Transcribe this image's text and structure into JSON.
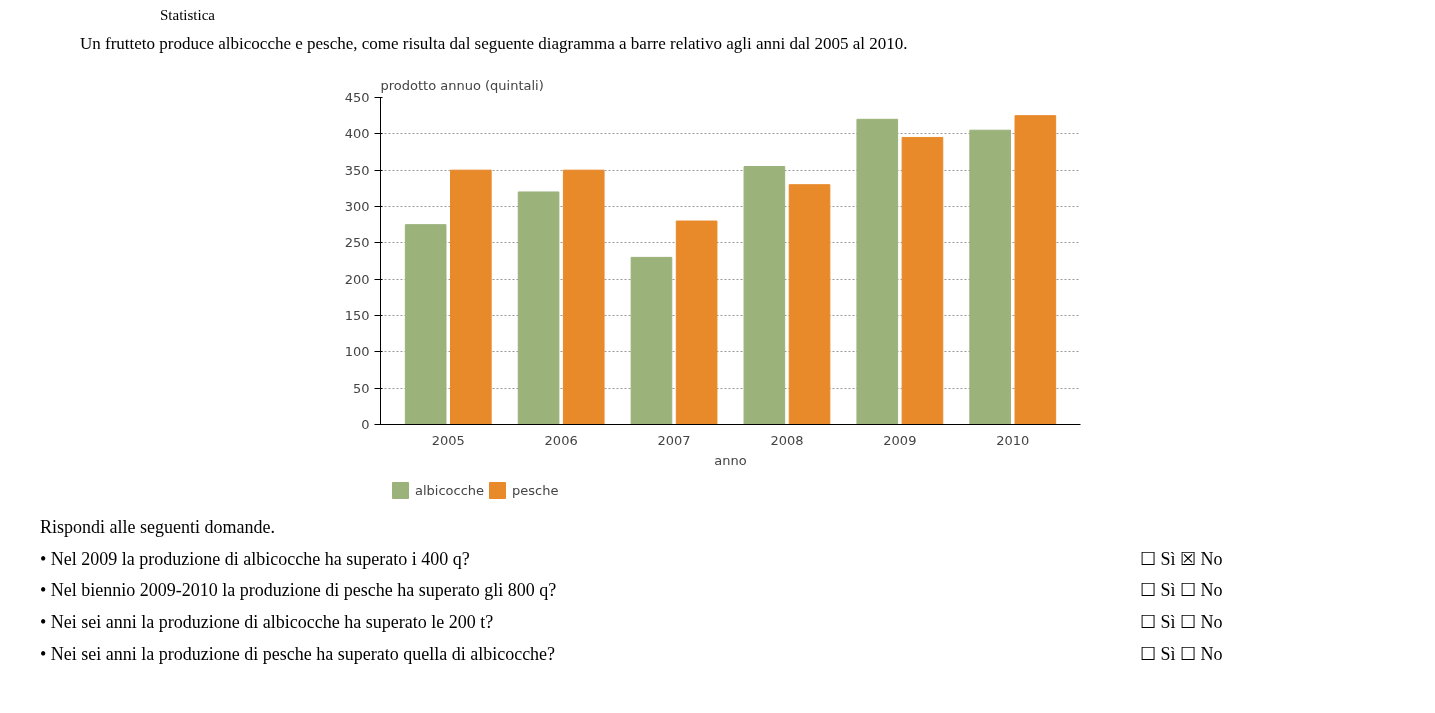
{
  "chart_data": {
    "type": "bar",
    "title": "Un frutteto produce albicocche e pesche, come risulta dal seguente diagramma a barre relativo agli anni dal 2005 al 2010.",
    "ylabel": "prodotto annuo (quintali)",
    "xlabel": "anno",
    "categories": [
      "2005",
      "2006",
      "2007",
      "2008",
      "2009",
      "2010"
    ],
    "series": [
      {
        "name": "albicocche",
        "color": "#9bb27a",
        "values": [
          275,
          320,
          230,
          355,
          420,
          405
        ]
      },
      {
        "name": "pesche",
        "color": "#e8892a",
        "values": [
          350,
          350,
          280,
          330,
          395,
          425
        ]
      }
    ],
    "ylim": [
      0,
      450
    ],
    "yticks": [
      0,
      50,
      100,
      150,
      200,
      250,
      300,
      350,
      400,
      450
    ],
    "grid": "y",
    "legend": "bottom",
    "annotations": [
      "Statistica",
      "Rispondi alle seguenti domande.",
      "• Nel 2009 la produzione di albicocche ha superato i 400 q?",
      "☐ Sì ☒ No",
      "• Nel biennio 2009-2010 la produzione di pesche ha superato gli 800 q?",
      "☐ Sì ☐ No",
      "• Nei sei anni la produzione di albicocche ha superato le 200 t?",
      "☐ Sì ☐ No",
      "• Nei sei anni la produzione di pesche ha superato quella di albicocche?",
      "☐ Sì ☐ No"
    ]
  }
}
